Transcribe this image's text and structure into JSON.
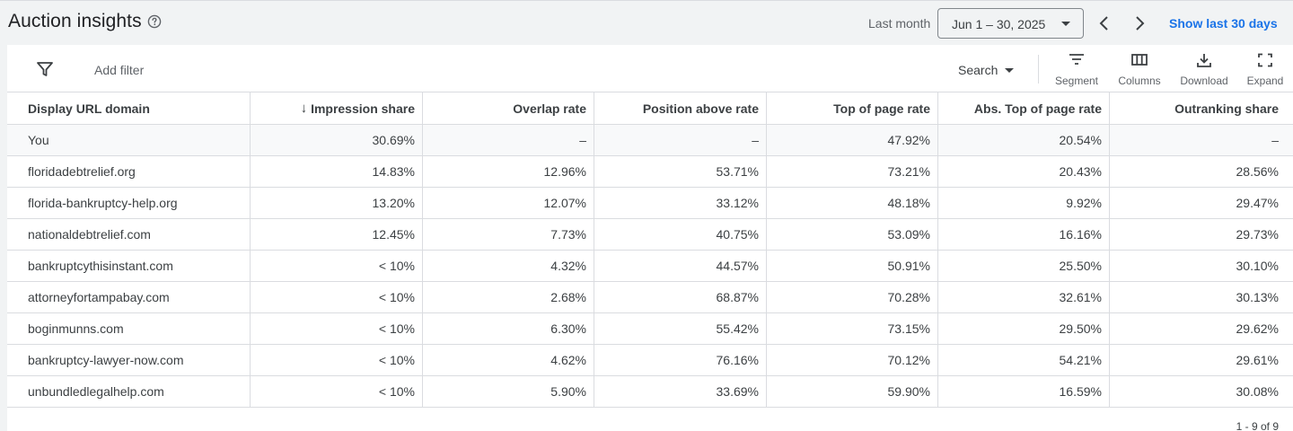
{
  "header": {
    "title": "Auction insights",
    "period_label": "Last month",
    "date_range": "Jun 1 – 30, 2025",
    "show_last_label": "Show last 30 days"
  },
  "toolbar": {
    "add_filter": "Add filter",
    "search_label": "Search",
    "tools": {
      "segment": "Segment",
      "columns": "Columns",
      "download": "Download",
      "expand": "Expand"
    }
  },
  "table": {
    "columns": [
      "Display URL domain",
      "Impression share",
      "Overlap rate",
      "Position above rate",
      "Top of page rate",
      "Abs. Top of page rate",
      "Outranking share"
    ],
    "sorted_column_indicator": "↓",
    "rows": [
      [
        "You",
        "30.69%",
        "–",
        "–",
        "47.92%",
        "20.54%",
        "–"
      ],
      [
        "floridadebtrelief.org",
        "14.83%",
        "12.96%",
        "53.71%",
        "73.21%",
        "20.43%",
        "28.56%"
      ],
      [
        "florida-bankruptcy-help.org",
        "13.20%",
        "12.07%",
        "33.12%",
        "48.18%",
        "9.92%",
        "29.47%"
      ],
      [
        "nationaldebtrelief.com",
        "12.45%",
        "7.73%",
        "40.75%",
        "53.09%",
        "16.16%",
        "29.73%"
      ],
      [
        "bankruptcythisinstant.com",
        "< 10%",
        "4.32%",
        "44.57%",
        "50.91%",
        "25.50%",
        "30.10%"
      ],
      [
        "attorneyfortampabay.com",
        "< 10%",
        "2.68%",
        "68.87%",
        "70.28%",
        "32.61%",
        "30.13%"
      ],
      [
        "boginmunns.com",
        "< 10%",
        "6.30%",
        "55.42%",
        "73.15%",
        "29.50%",
        "29.62%"
      ],
      [
        "bankruptcy-lawyer-now.com",
        "< 10%",
        "4.62%",
        "76.16%",
        "70.12%",
        "54.21%",
        "29.61%"
      ],
      [
        "unbundledlegalhelp.com",
        "< 10%",
        "5.90%",
        "33.69%",
        "59.90%",
        "16.59%",
        "30.08%"
      ]
    ]
  },
  "pager": "1 - 9 of 9",
  "colors": {
    "accent": "#1a73e8",
    "background": "#f1f3f4",
    "border": "#dadce0"
  }
}
